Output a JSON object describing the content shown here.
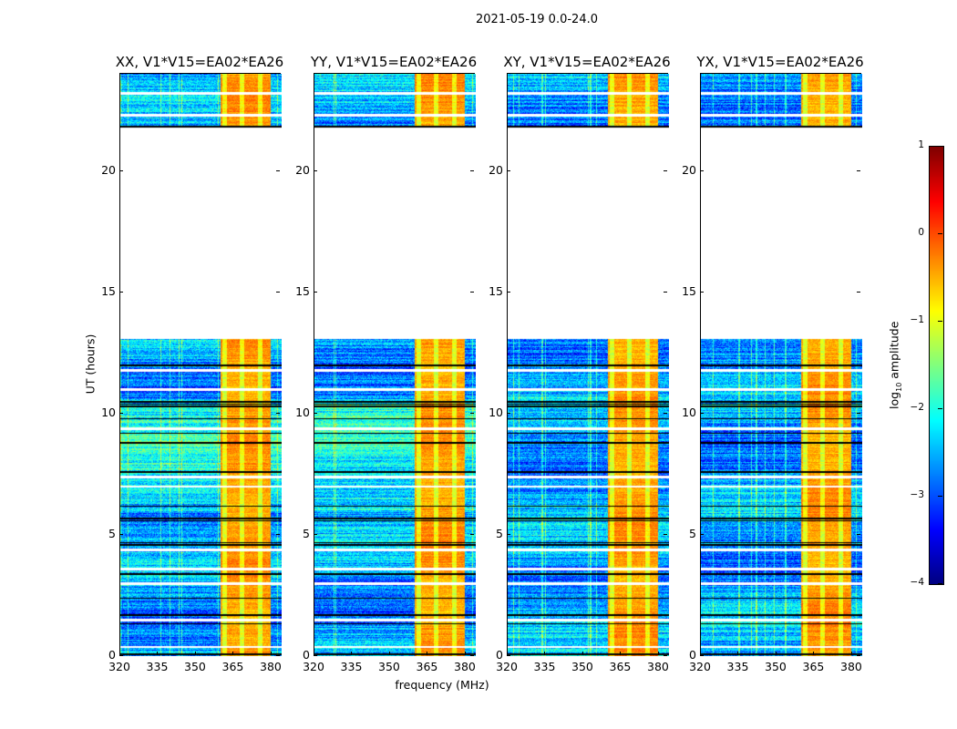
{
  "chart_data": {
    "type": "heatmap",
    "title": "2021-05-19 0.0-24.0",
    "xlabel": "frequency (MHz)",
    "ylabel": "UT (hours)",
    "xlim": [
      320,
      384
    ],
    "ylim": [
      0,
      24
    ],
    "xticks": [
      320,
      335,
      350,
      365,
      380
    ],
    "yticks": [
      0,
      5,
      10,
      15,
      20
    ],
    "panels": [
      {
        "title": "XX, V1*V15=EA02*EA26"
      },
      {
        "title": "YY, V1*V15=EA02*EA26"
      },
      {
        "title": "XY, V1*V15=EA02*EA26"
      },
      {
        "title": "YX, V1*V15=EA02*EA26"
      }
    ],
    "no_data_hours": [
      [
        13.1,
        21.8
      ]
    ],
    "bright_band_mhz": [
      359.5,
      379.5
    ],
    "background_log_amplitude": -2.6,
    "band_log_amplitude": -0.4,
    "flagged_rows_hours": [
      0.4,
      1.5,
      3.0,
      3.6,
      4.4,
      7.4,
      7.0,
      9.4,
      11.0,
      11.8,
      22.3,
      23.2
    ],
    "dark_rows_hours": [
      0.1,
      1.35,
      1.7,
      2.4,
      3.4,
      4.6,
      4.7,
      5.6,
      5.7,
      6.2,
      7.6,
      8.8,
      9.2,
      9.8,
      10.3,
      10.4,
      10.5,
      12.0,
      21.85
    ],
    "colorbar": {
      "label": "log10 amplitude",
      "label_base": "log",
      "label_sub": "10",
      "label_rest": " amplitude",
      "ticks": [
        "1",
        "0",
        "−1",
        "−2",
        "−3",
        "−4"
      ],
      "range": [
        -4,
        1
      ],
      "colormap": "jet"
    }
  }
}
